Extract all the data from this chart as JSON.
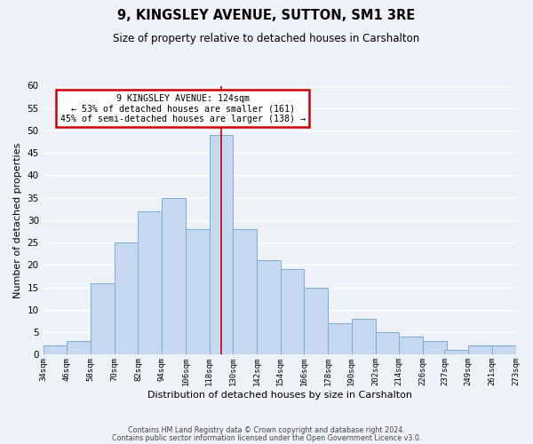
{
  "title": "9, KINGSLEY AVENUE, SUTTON, SM1 3RE",
  "subtitle": "Size of property relative to detached houses in Carshalton",
  "xlabel": "Distribution of detached houses by size in Carshalton",
  "ylabel": "Number of detached properties",
  "bin_starts": [
    34,
    46,
    58,
    70,
    82,
    94,
    106,
    118,
    130,
    142,
    154,
    166,
    178,
    190,
    202,
    214,
    226,
    237,
    249,
    261
  ],
  "bin_width": 12,
  "bar_heights": [
    2,
    3,
    16,
    25,
    32,
    35,
    28,
    49,
    28,
    21,
    19,
    15,
    7,
    8,
    5,
    4,
    3,
    1,
    2,
    2
  ],
  "bar_color": "#c5d8f0",
  "bar_edgecolor": "#7badd4",
  "vline_x": 124,
  "vline_color": "#cc0000",
  "ylim": [
    0,
    60
  ],
  "yticks": [
    0,
    5,
    10,
    15,
    20,
    25,
    30,
    35,
    40,
    45,
    50,
    55,
    60
  ],
  "annotation_text": "9 KINGSLEY AVENUE: 124sqm\n← 53% of detached houses are smaller (161)\n45% of semi-detached houses are larger (138) →",
  "annotation_box_color": "#ffffff",
  "annotation_box_edgecolor": "#cc0000",
  "footer_line1": "Contains HM Land Registry data © Crown copyright and database right 2024.",
  "footer_line2": "Contains public sector information licensed under the Open Government Licence v3.0.",
  "background_color": "#eef2f8",
  "grid_color": "#ffffff",
  "tick_labels": [
    "34sqm",
    "46sqm",
    "58sqm",
    "70sqm",
    "82sqm",
    "94sqm",
    "106sqm",
    "118sqm",
    "130sqm",
    "142sqm",
    "154sqm",
    "166sqm",
    "178sqm",
    "190sqm",
    "202sqm",
    "214sqm",
    "226sqm",
    "237sqm",
    "249sqm",
    "261sqm",
    "273sqm"
  ]
}
